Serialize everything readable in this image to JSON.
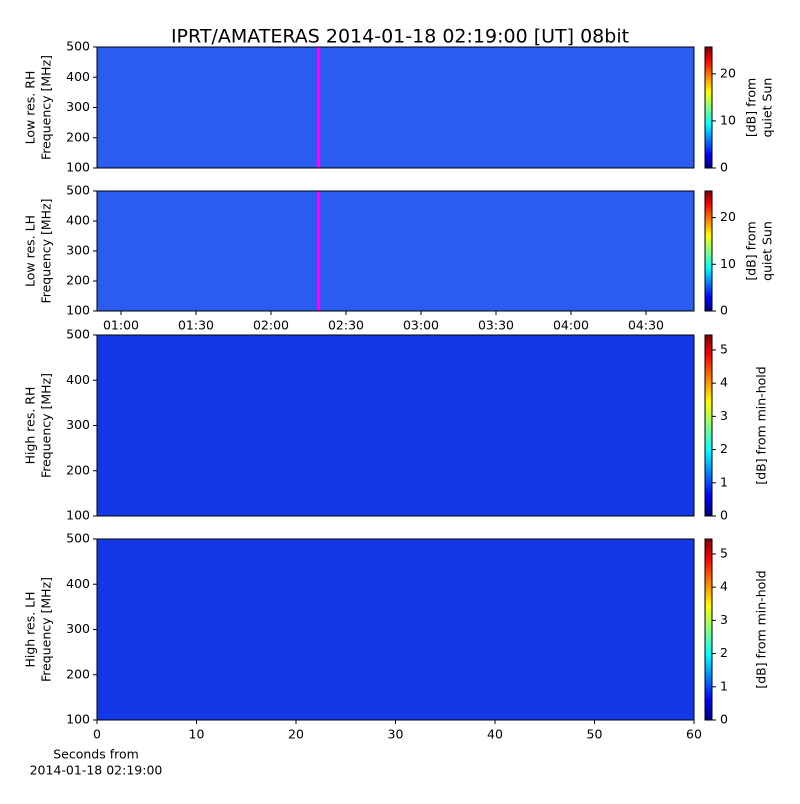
{
  "title": "IPRT/AMATERAS 2014-01-18 02:19:00 [UT]   08bit",
  "chart_data": [
    {
      "type": "heatmap",
      "ylabel": [
        "Low res. RH",
        "Frequency [MHz]"
      ],
      "ylim": [
        100,
        500
      ],
      "yticks": [
        100,
        200,
        300,
        400,
        500
      ],
      "xlim": [
        50.4,
        289.2
      ],
      "cursor": {
        "x": 139,
        "color": "#ff00ff"
      },
      "color": "#2a5cf0",
      "colorbar": {
        "label": [
          "[dB] from",
          "quiet Sun"
        ],
        "lim": [
          0,
          25.7
        ],
        "ticks": [
          0,
          10,
          20
        ]
      }
    },
    {
      "type": "heatmap",
      "ylabel": [
        "Low res. LH",
        "Frequency [MHz]"
      ],
      "ylim": [
        100,
        500
      ],
      "yticks": [
        100,
        200,
        300,
        400,
        500
      ],
      "xlim": [
        50.4,
        289.2
      ],
      "cursor": {
        "x": 139,
        "color": "#ff00ff"
      },
      "color": "#2a5cf0",
      "xticks": [
        {
          "value": 60,
          "label": "01:00"
        },
        {
          "value": 90,
          "label": "01:30"
        },
        {
          "value": 120,
          "label": "02:00"
        },
        {
          "value": 150,
          "label": "02:30"
        },
        {
          "value": 180,
          "label": "03:00"
        },
        {
          "value": 210,
          "label": "03:30"
        },
        {
          "value": 240,
          "label": "04:00"
        },
        {
          "value": 270,
          "label": "04:30"
        }
      ],
      "colorbar": {
        "label": [
          "[dB] from",
          "quiet Sun"
        ],
        "lim": [
          0,
          25.7
        ],
        "ticks": [
          0,
          10,
          20
        ]
      }
    },
    {
      "type": "heatmap",
      "ylabel": [
        "High res. RH",
        "Frequency [MHz]"
      ],
      "ylim": [
        100,
        500
      ],
      "yticks": [
        100,
        200,
        300,
        400,
        500
      ],
      "xlim": [
        0,
        60
      ],
      "color": "#1438e6",
      "colorbar": {
        "label": [
          "[dB] from min-hold"
        ],
        "lim": [
          0,
          5.45
        ],
        "ticks": [
          0,
          1,
          2,
          3,
          4,
          5
        ]
      }
    },
    {
      "type": "heatmap",
      "ylabel": [
        "High res. LH",
        "Frequency [MHz]"
      ],
      "ylim": [
        100,
        500
      ],
      "yticks": [
        100,
        200,
        300,
        400,
        500
      ],
      "xlim": [
        0,
        60
      ],
      "color": "#1438e6",
      "xticks": [
        0,
        10,
        20,
        30,
        40,
        50,
        60
      ],
      "xlabel": [
        "Seconds from",
        "2014-01-18 02:19:00"
      ],
      "colorbar": {
        "label": [
          "[dB] from min-hold"
        ],
        "lim": [
          0,
          5.45
        ],
        "ticks": [
          0,
          1,
          2,
          3,
          4,
          5
        ]
      }
    }
  ]
}
